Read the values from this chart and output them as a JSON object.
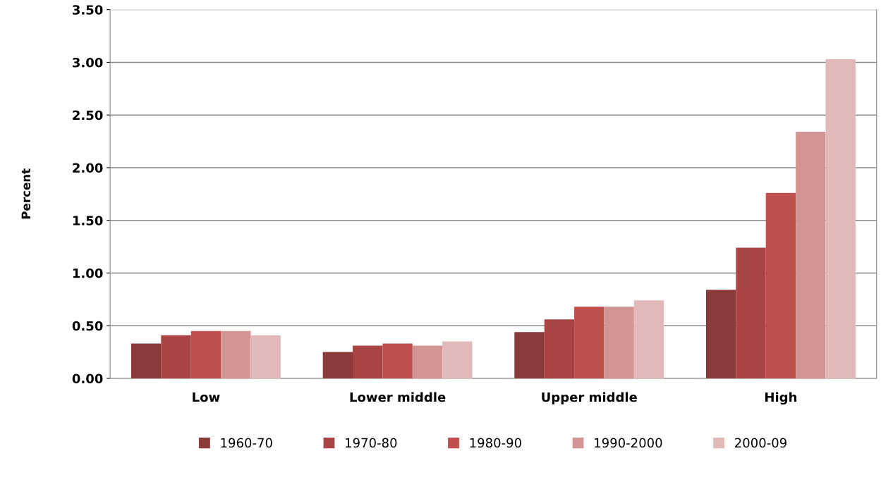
{
  "chart_data": {
    "type": "bar",
    "ylabel": "Percent",
    "categories": [
      "Low",
      "Lower middle",
      "Upper middle",
      "High"
    ],
    "series": [
      {
        "name": "1960-70",
        "color": "#8b3a3a",
        "values": [
          0.33,
          0.25,
          0.44,
          0.84
        ]
      },
      {
        "name": "1970-80",
        "color": "#a84444",
        "values": [
          0.41,
          0.31,
          0.56,
          1.24
        ]
      },
      {
        "name": "1980-90",
        "color": "#c0504d",
        "values": [
          0.45,
          0.33,
          0.68,
          1.76
        ]
      },
      {
        "name": "1990-2000",
        "color": "#d39494",
        "values": [
          0.45,
          0.31,
          0.68,
          2.34
        ]
      },
      {
        "name": "2000-09",
        "color": "#e2b9b9",
        "values": [
          0.41,
          0.35,
          0.74,
          3.03
        ]
      }
    ],
    "ylim": [
      0,
      3.5
    ],
    "yticks": [
      {
        "value": 0,
        "label": "0.00"
      },
      {
        "value": 0.5,
        "label": "0.50"
      },
      {
        "value": 1,
        "label": "1.00"
      },
      {
        "value": 1.5,
        "label": "1.50"
      },
      {
        "value": 2,
        "label": "2.00"
      },
      {
        "value": 2.5,
        "label": "2.50"
      },
      {
        "value": 3,
        "label": "3.00"
      },
      {
        "value": 3.5,
        "label": "3.50"
      }
    ],
    "grid": "y",
    "legend": "bottom"
  }
}
